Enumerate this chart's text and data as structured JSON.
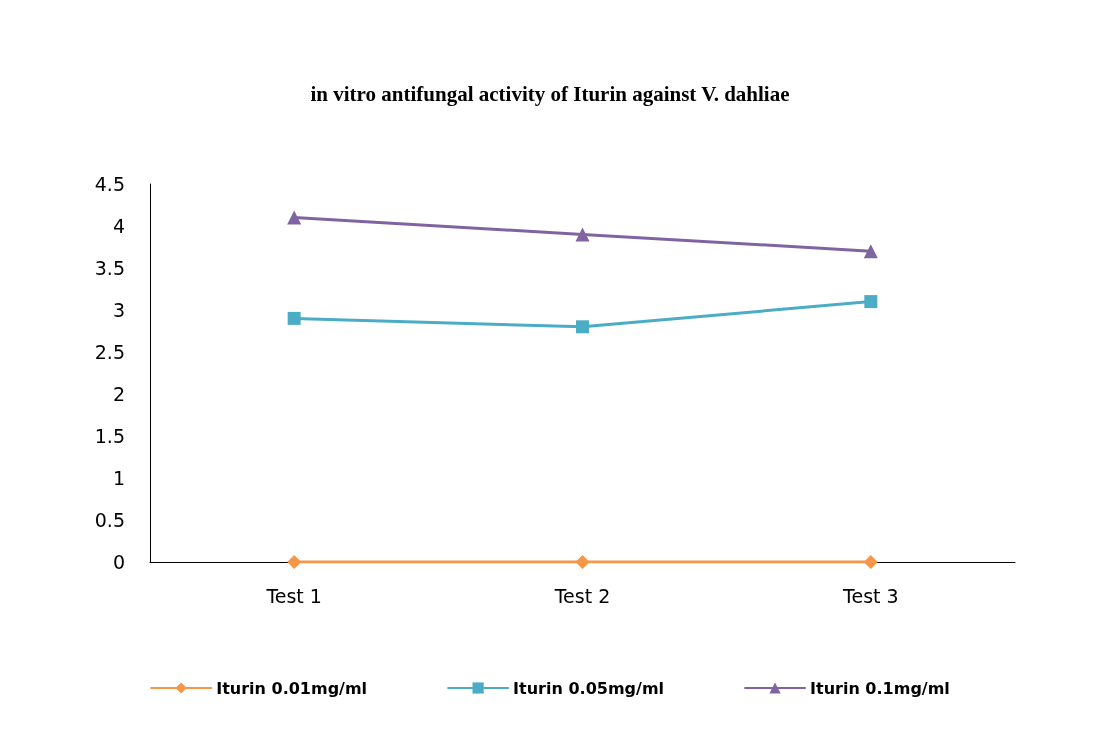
{
  "chart_data": {
    "type": "line",
    "title": "in vitro antifungal activity of Iturin against V. dahliae",
    "categories": [
      "Test 1",
      "Test 2",
      "Test 3"
    ],
    "series": [
      {
        "name": "Iturin 0.01mg/ml",
        "color": "#f79646",
        "marker": "diamond",
        "values": [
          0,
          0,
          0
        ]
      },
      {
        "name": "Iturin 0.05mg/ml",
        "color": "#4bacc6",
        "marker": "square",
        "values": [
          2.9,
          2.8,
          3.1
        ]
      },
      {
        "name": "Iturin 0.1mg/ml",
        "color": "#8064a2",
        "marker": "triangle",
        "values": [
          4.1,
          3.9,
          3.7
        ]
      }
    ],
    "ylim": [
      0,
      4.5
    ],
    "yticks": [
      0,
      0.5,
      1,
      1.5,
      2,
      2.5,
      3,
      3.5,
      4,
      4.5
    ],
    "grid": false,
    "legend": "bottom",
    "line_style": "solid"
  }
}
